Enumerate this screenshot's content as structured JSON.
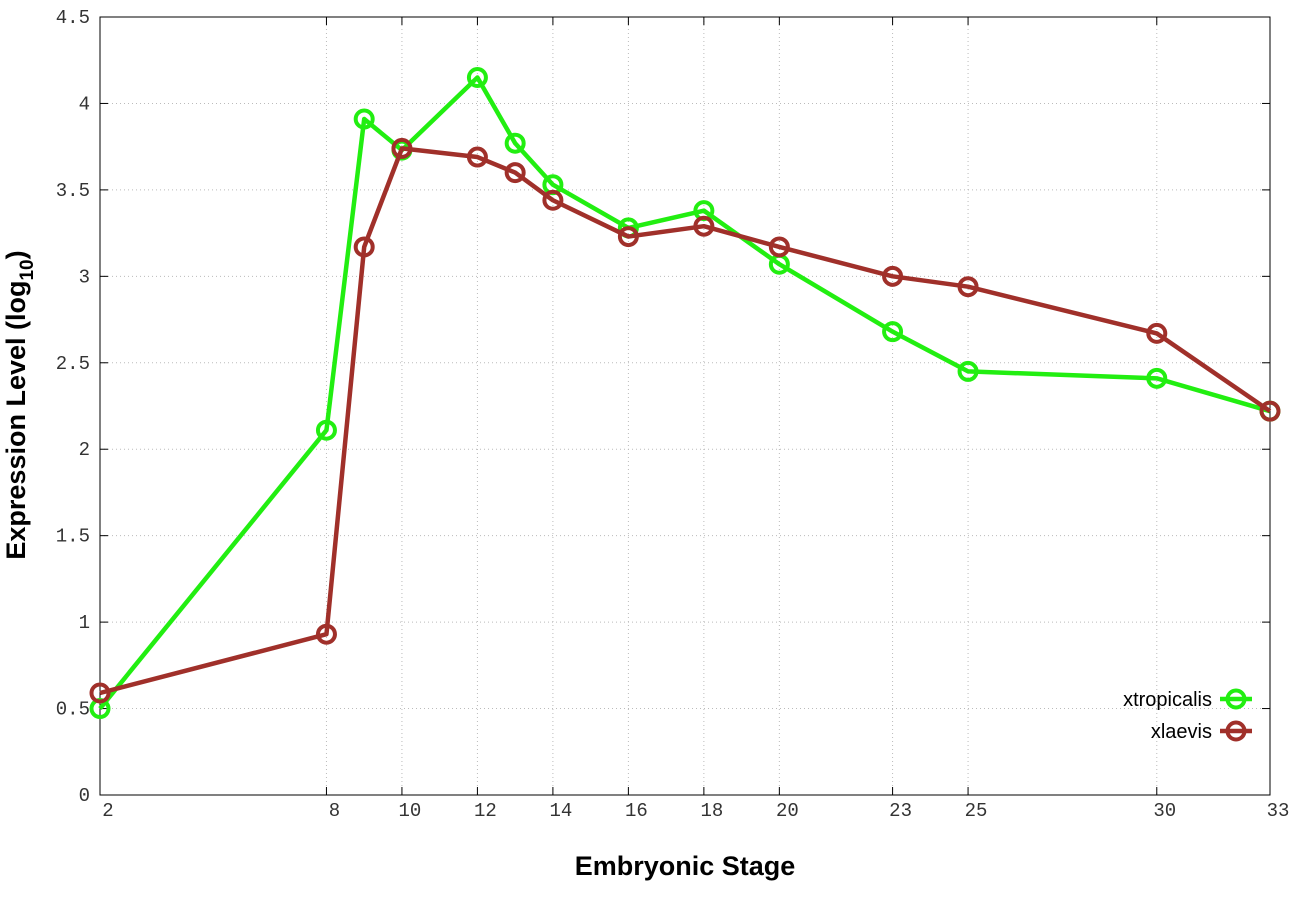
{
  "chart_data": {
    "type": "line",
    "xlabel": "Embryonic Stage",
    "ylabel_parts": [
      "Expression Level (log",
      "10",
      ")"
    ],
    "x": [
      2,
      8,
      9,
      10,
      12,
      13,
      14,
      16,
      18,
      20,
      23,
      25,
      30,
      33
    ],
    "series": [
      {
        "name": "xtropicalis",
        "color": "#22ee11",
        "values": [
          0.5,
          2.11,
          3.91,
          3.73,
          4.15,
          3.77,
          3.53,
          3.28,
          3.38,
          3.07,
          2.68,
          2.45,
          2.41,
          2.22
        ]
      },
      {
        "name": "xlaevis",
        "color": "#a0302a",
        "values": [
          0.59,
          0.93,
          3.17,
          3.74,
          3.69,
          3.6,
          3.44,
          3.23,
          3.29,
          3.17,
          3.0,
          2.94,
          2.67,
          2.22
        ]
      }
    ],
    "xlim": [
      2,
      33
    ],
    "xticks": [
      2,
      8,
      10,
      12,
      14,
      16,
      18,
      20,
      23,
      25,
      30,
      33
    ],
    "ylim": [
      0,
      4.5
    ],
    "yticks": [
      0,
      0.5,
      1,
      1.5,
      2,
      2.5,
      3,
      3.5,
      4,
      4.5
    ],
    "grid": true,
    "legend": "lower right"
  }
}
